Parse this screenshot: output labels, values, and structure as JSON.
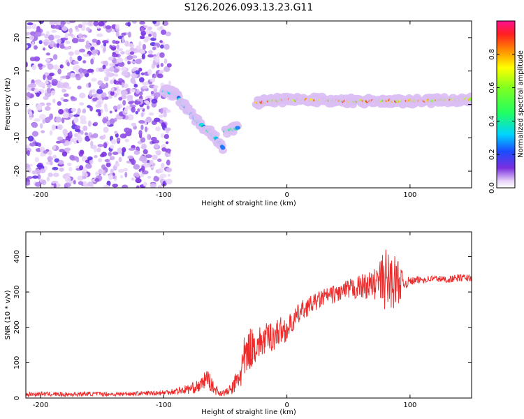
{
  "chart_data": [
    {
      "type": "heatmap",
      "title": "S126.2026.093.13.23.G11",
      "xlabel": "Height of straight line (km)",
      "ylabel": "Frequency (Hz)",
      "xlim": [
        -212,
        150
      ],
      "ylim": [
        -25,
        25
      ],
      "xticks": [
        -200,
        -100,
        0,
        100
      ],
      "xtick_labels": [
        "-200",
        "-100",
        "0",
        "100"
      ],
      "yticks": [
        -20,
        -10,
        0,
        10,
        20
      ],
      "ytick_labels": [
        "-20",
        "-10",
        "0",
        "10",
        "20"
      ],
      "colorbar": {
        "label": "Normalized spectral amplitude",
        "range": [
          0,
          1
        ],
        "ticks": [
          0.0,
          0.2,
          0.4,
          0.6,
          0.8
        ],
        "tick_labels": [
          "0.0",
          "0.2",
          "0.4",
          "0.6",
          "0.8"
        ]
      },
      "features": [
        {
          "name": "noise field",
          "x_range": [
            -212,
            -95
          ],
          "y_range": [
            -25,
            25
          ],
          "amplitude": 0.1
        },
        {
          "name": "descending trace",
          "points": [
            [
              -100,
              4
            ],
            [
              -90,
              3
            ],
            [
              -80,
              -2
            ],
            [
              -70,
              -6
            ],
            [
              -60,
              -9
            ],
            [
              -52,
              -13
            ]
          ],
          "amplitude": 0.4
        },
        {
          "name": "secondary trace",
          "points": [
            [
              -50,
              -8
            ],
            [
              -40,
              -7
            ]
          ],
          "amplitude": 0.45
        },
        {
          "name": "stable carrier",
          "points": [
            [
              -25,
              0.5
            ],
            [
              0,
              1.5
            ],
            [
              50,
              1
            ],
            [
              100,
              1
            ],
            [
              150,
              1.5
            ]
          ],
          "amplitude": 0.9
        }
      ]
    },
    {
      "type": "line",
      "xlabel": "Height of straight line (km)",
      "ylabel": "SNR (10 * v/v)",
      "xlim": [
        -212,
        150
      ],
      "ylim": [
        0,
        470
      ],
      "xticks": [
        -200,
        -100,
        0,
        100
      ],
      "xtick_labels": [
        "-200",
        "-100",
        "0",
        "100"
      ],
      "yticks": [
        0,
        100,
        200,
        300,
        400
      ],
      "ytick_labels": [
        "0",
        "100",
        "200",
        "300",
        "400"
      ],
      "series": [
        {
          "name": "SNR",
          "color": "#ee2a2a",
          "x": [
            -212,
            -200,
            -180,
            -160,
            -140,
            -120,
            -100,
            -90,
            -80,
            -70,
            -65,
            -60,
            -55,
            -50,
            -45,
            -40,
            -35,
            -30,
            -25,
            -20,
            -15,
            -10,
            -5,
            0,
            5,
            10,
            15,
            20,
            25,
            30,
            40,
            50,
            60,
            70,
            75,
            80,
            85,
            90,
            95,
            100,
            110,
            120,
            130,
            140,
            150
          ],
          "values": [
            10,
            12,
            10,
            12,
            11,
            13,
            15,
            20,
            25,
            35,
            60,
            30,
            15,
            15,
            25,
            50,
            100,
            140,
            150,
            160,
            170,
            180,
            190,
            195,
            215,
            240,
            255,
            265,
            275,
            285,
            295,
            305,
            315,
            320,
            330,
            335,
            330,
            330,
            325,
            330,
            335,
            338,
            335,
            340,
            340
          ],
          "spread": [
            6,
            6,
            6,
            6,
            6,
            6,
            8,
            10,
            14,
            18,
            28,
            18,
            10,
            10,
            16,
            40,
            70,
            60,
            50,
            45,
            45,
            45,
            40,
            35,
            30,
            30,
            28,
            25,
            25,
            25,
            25,
            30,
            35,
            40,
            60,
            90,
            80,
            70,
            20,
            12,
            10,
            10,
            10,
            10,
            10
          ]
        }
      ]
    }
  ]
}
